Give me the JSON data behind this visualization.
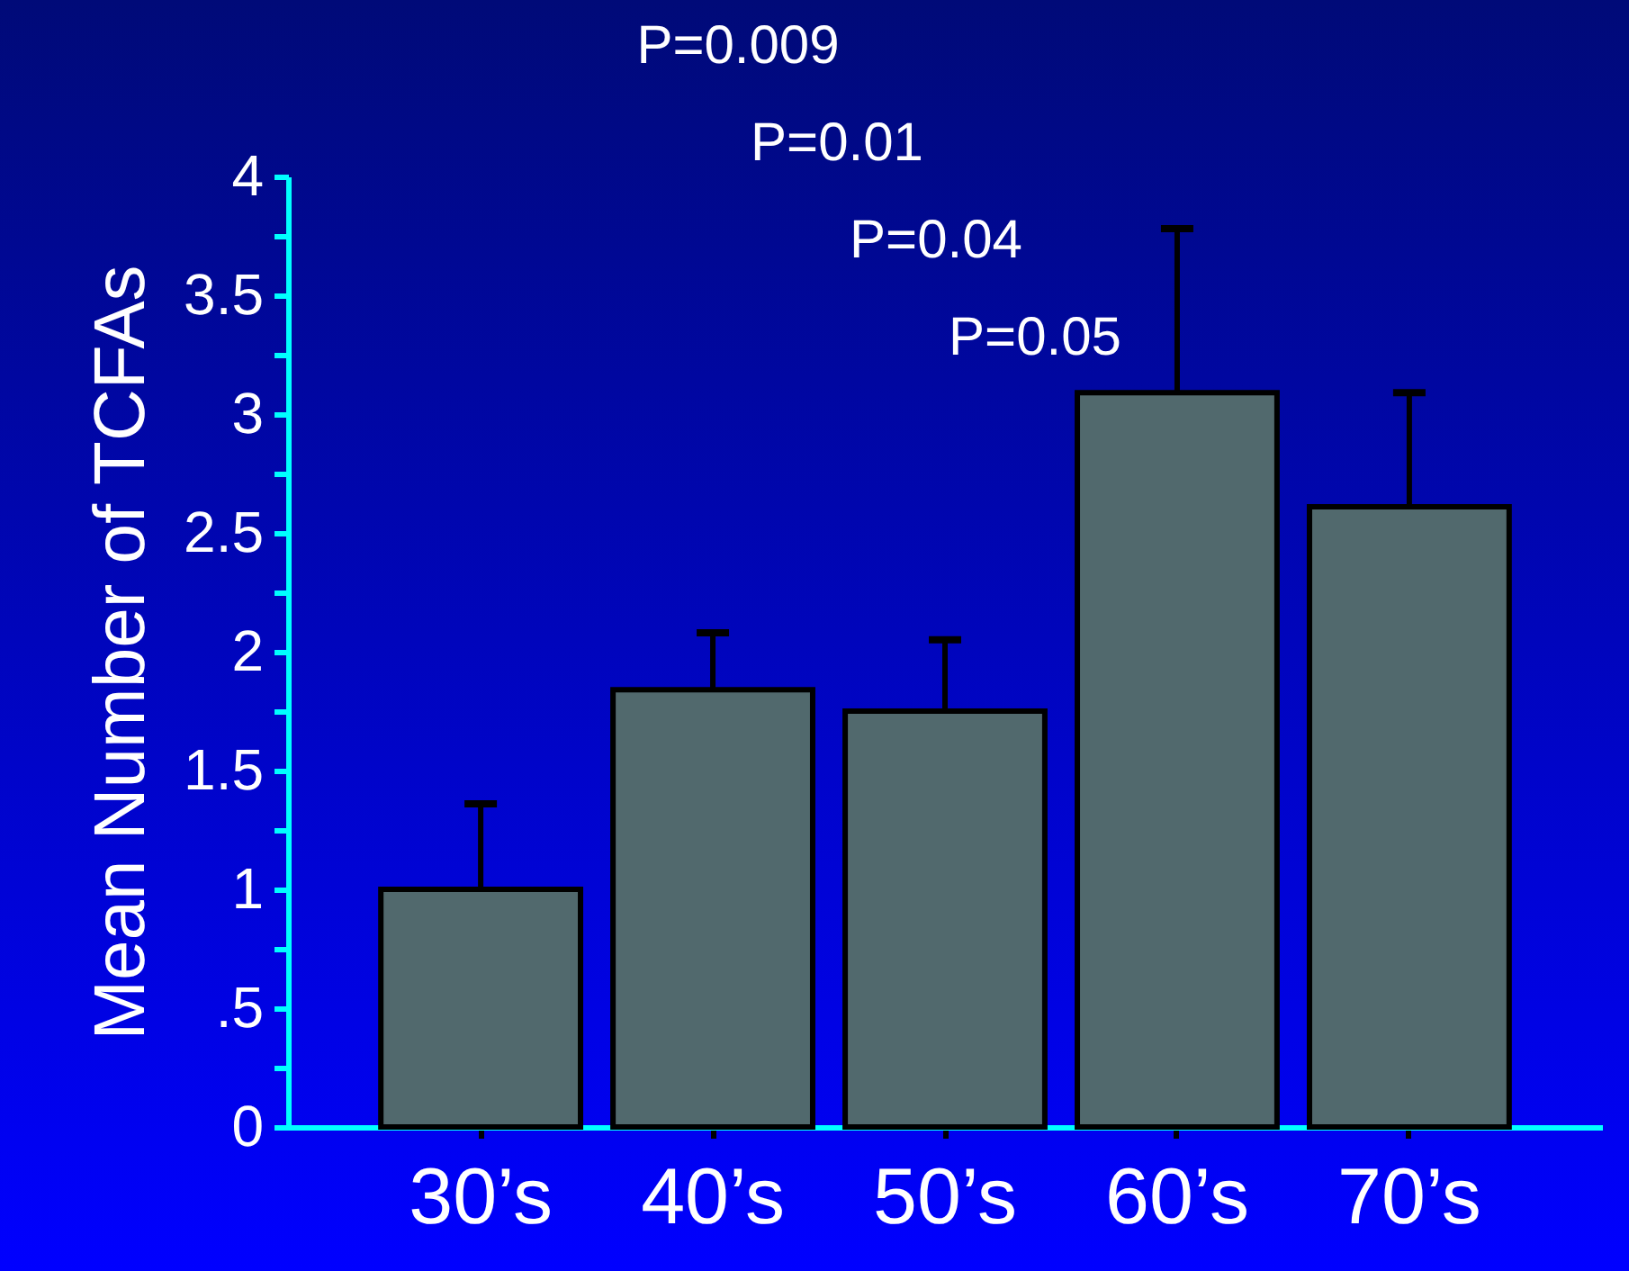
{
  "chart_data": {
    "type": "bar",
    "ylabel": "Mean Number of TCFAs",
    "categories": [
      "30’s",
      "40’s",
      "50’s",
      "60’s",
      "70’s"
    ],
    "values": [
      1.0,
      1.84,
      1.75,
      3.09,
      2.61
    ],
    "errors": [
      [
        1.0,
        1.36
      ],
      [
        1.84,
        2.08
      ],
      [
        1.75,
        2.05
      ],
      [
        3.09,
        3.78
      ],
      [
        2.61,
        3.09
      ]
    ],
    "color": "#51696d",
    "ylim": [
      0,
      4
    ],
    "yticks": [
      0,
      {
        "value": 0.25,
        "label": null
      },
      {
        "value": 0.5,
        "label": ".5"
      },
      {
        "value": 0.75,
        "label": null
      },
      1,
      {
        "value": 1.25,
        "label": null
      },
      1.5,
      {
        "value": 1.75,
        "label": null
      },
      2,
      {
        "value": 2.25,
        "label": null
      },
      2.5,
      {
        "value": 2.75,
        "label": null
      },
      3,
      {
        "value": 3.25,
        "label": null
      },
      3.5,
      {
        "value": 3.75,
        "label": null
      },
      4
    ],
    "annotations": [
      "P=0.009",
      "P=0.01",
      "P=0.04",
      "P=0.05"
    ]
  }
}
